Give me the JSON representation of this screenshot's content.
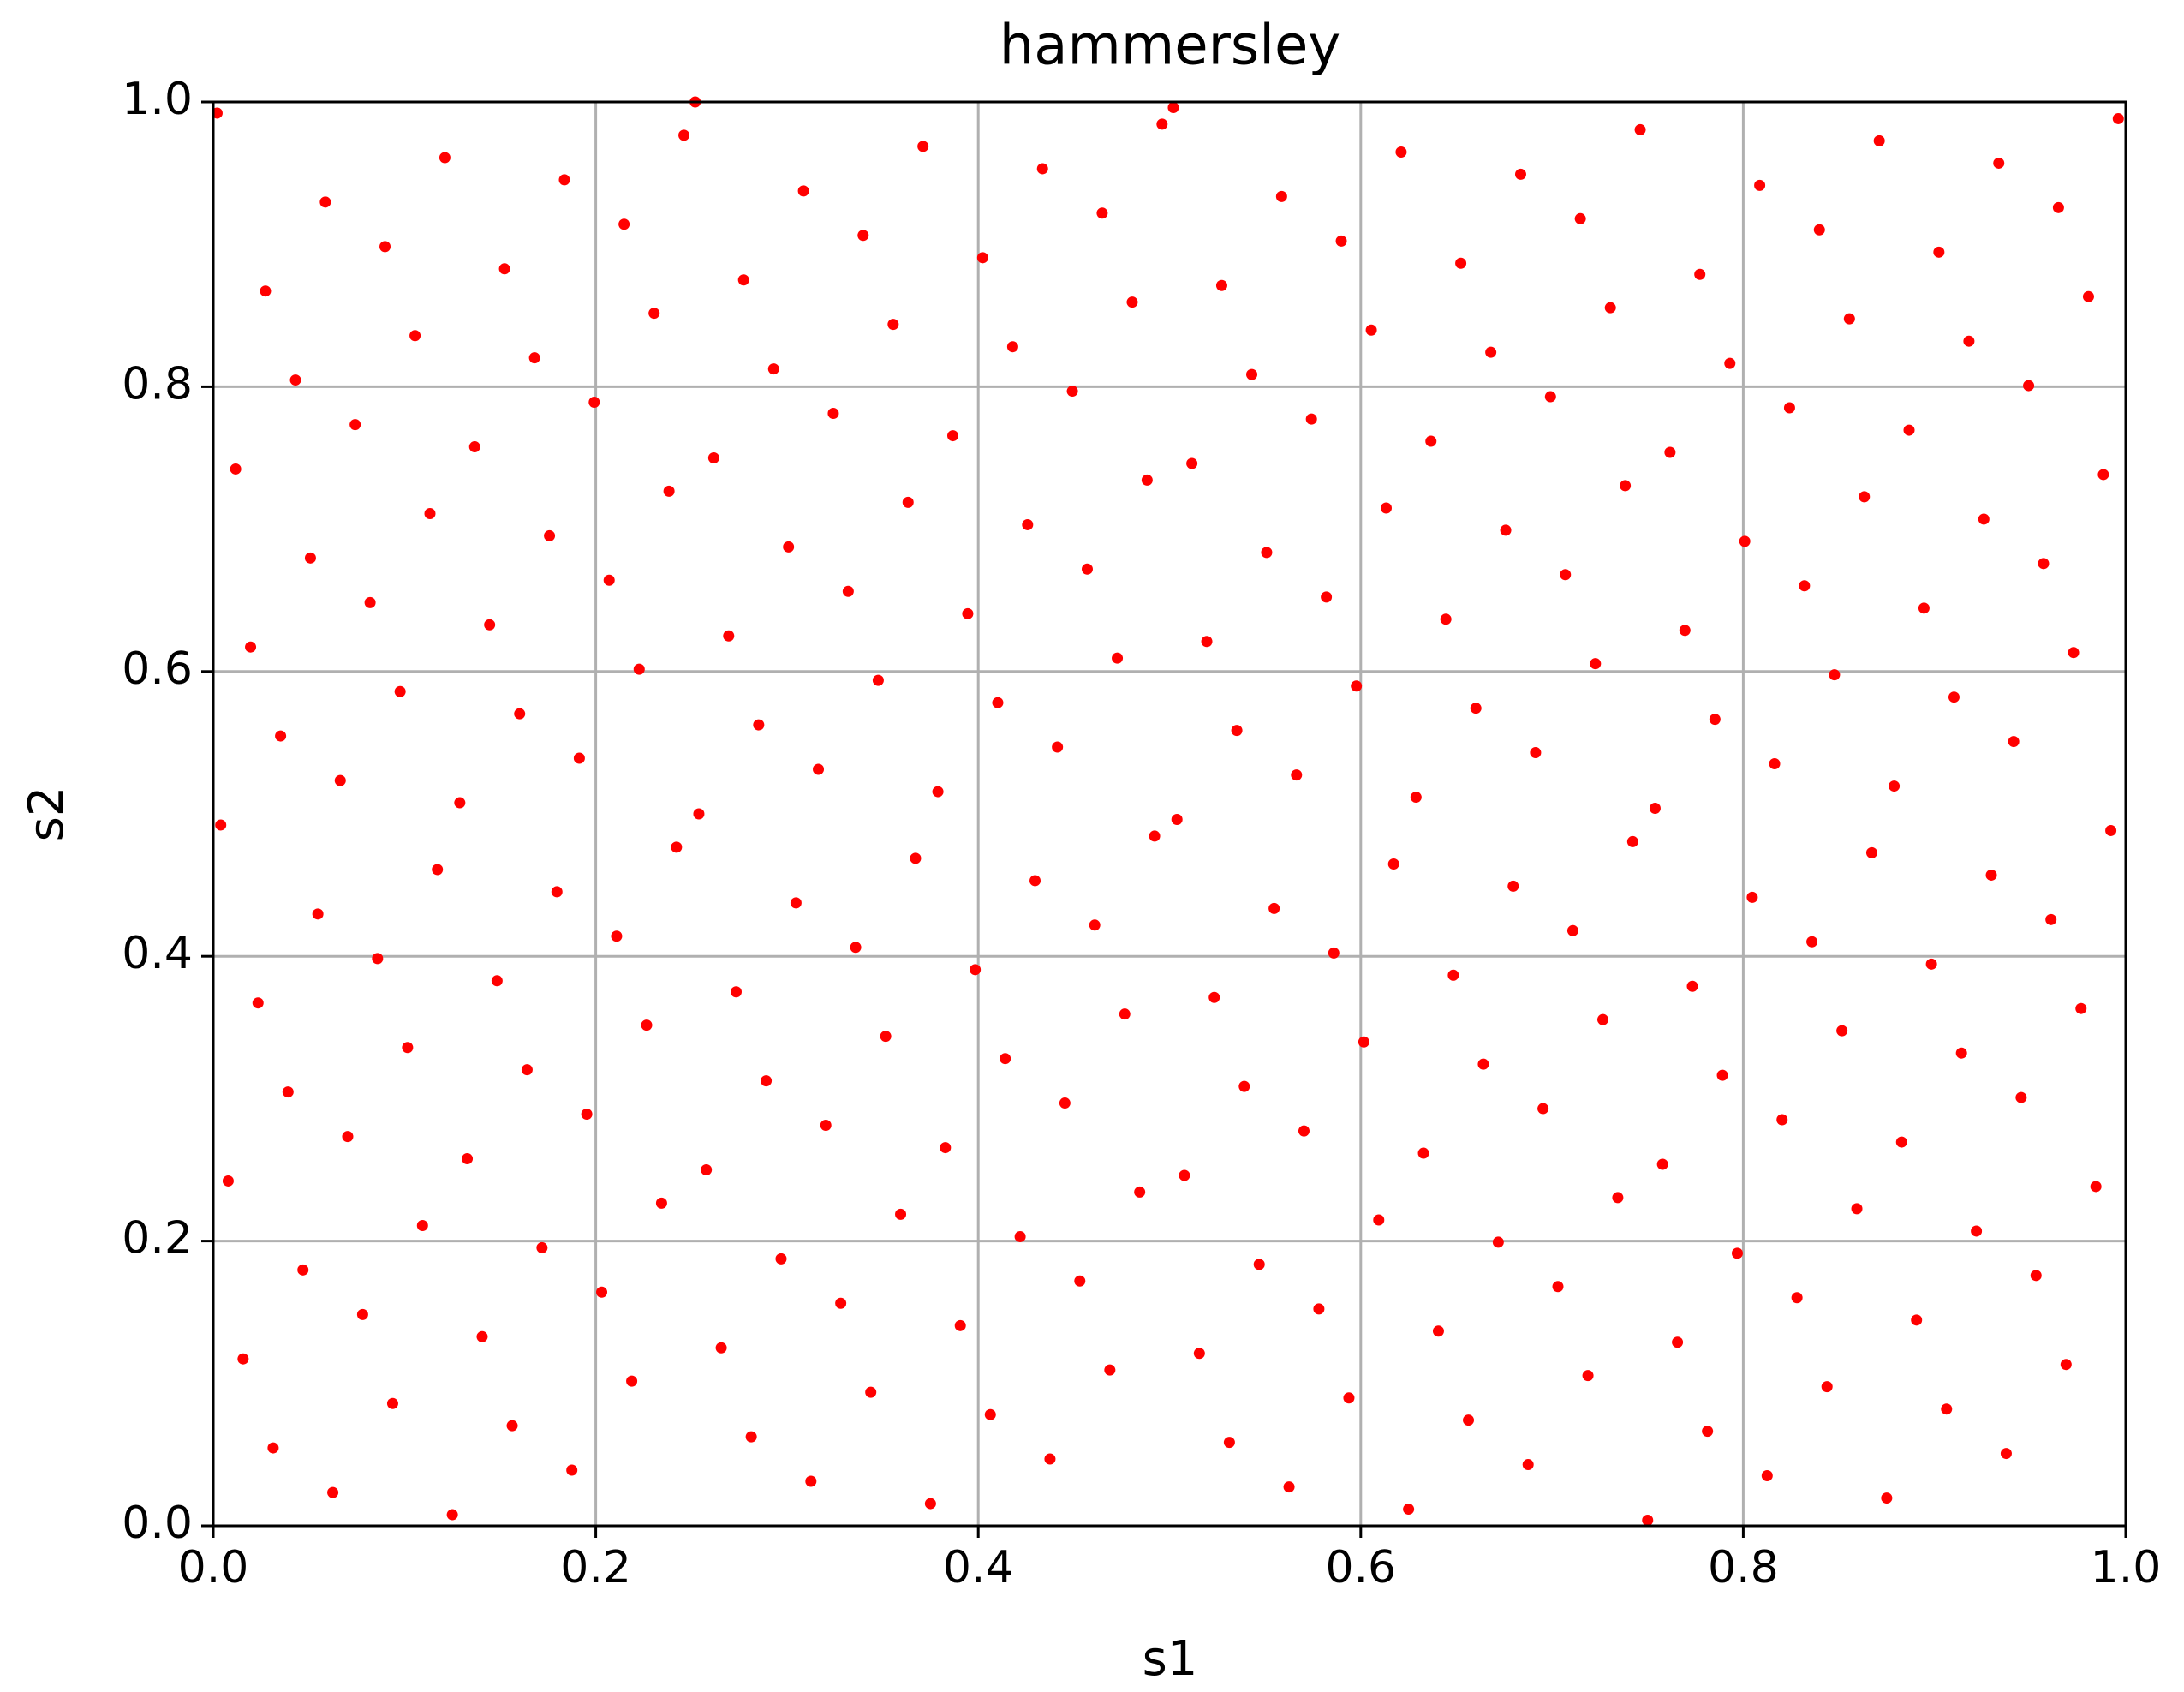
{
  "chart_data": {
    "type": "scatter",
    "title": "hammersley",
    "xlabel": "s1",
    "ylabel": "s2",
    "color": "#ff0000",
    "xlim": [
      0,
      1
    ],
    "ylim": [
      0,
      1
    ],
    "grid": true,
    "xticks": [
      {
        "value": 0,
        "label": "0.0"
      },
      {
        "value": 0.2,
        "label": "0.2"
      },
      {
        "value": 0.4,
        "label": "0.4"
      },
      {
        "value": 0.6,
        "label": "0.6"
      },
      {
        "value": 0.8,
        "label": "0.8"
      },
      {
        "value": 1,
        "label": "1.0"
      }
    ],
    "yticks": [
      {
        "value": 0,
        "label": "0.0"
      },
      {
        "value": 0.2,
        "label": "0.2"
      },
      {
        "value": 0.4,
        "label": "0.4"
      },
      {
        "value": 0.6,
        "label": "0.6"
      },
      {
        "value": 0.8,
        "label": "0.8"
      },
      {
        "value": 1,
        "label": "1.0"
      }
    ],
    "x": [
      0.75,
      0.125,
      0.625,
      0.375,
      0.875,
      0.0625,
      0.5625,
      0.3125,
      0.8125,
      0.1875,
      0.6875,
      0.4375,
      0.9375,
      0.0313,
      0.5313,
      0.2813,
      0.7813,
      0.1563,
      0.6563,
      0.4063,
      0.9063,
      0.0938,
      0.5938,
      0.3438,
      0.8438,
      0.2188,
      0.7188,
      0.4688,
      0.9688,
      0.0156,
      0.5156,
      0.2656,
      0.7656,
      0.1406,
      0.6406,
      0.3906,
      0.8906,
      0.0781,
      0.5781,
      0.3281,
      0.8281,
      0.2031,
      0.7031,
      0.4531,
      0.9531,
      0.0469,
      0.5469,
      0.2969,
      0.7969,
      0.1719,
      0.6719,
      0.4219,
      0.9219,
      0.1094,
      0.6094,
      0.3594,
      0.8594,
      0.2344,
      0.7344,
      0.4844,
      0.9844,
      0.0078,
      0.5078,
      0.2578,
      0.7578,
      0.1328,
      0.6328,
      0.3828,
      0.8828,
      0.0703,
      0.5703,
      0.3203,
      0.8203,
      0.1953,
      0.6953,
      0.4453,
      0.9453,
      0.0391,
      0.5391,
      0.2891,
      0.7891,
      0.1641,
      0.6641,
      0.4141,
      0.9141,
      0.1016,
      0.6016,
      0.3516,
      0.8516,
      0.2266,
      0.7266,
      0.4766,
      0.9766,
      0.0234,
      0.5234,
      0.2734,
      0.7734,
      0.1484,
      0.6484,
      0.3984,
      0.8984,
      0.0859,
      0.5859,
      0.3359,
      0.8359,
      0.2109,
      0.7109,
      0.4609,
      0.9609,
      0.0547,
      0.5547,
      0.3047,
      0.8047,
      0.1797,
      0.6797,
      0.4297,
      0.9297,
      0.1172,
      0.6172,
      0.3672,
      0.8672,
      0.2422,
      0.7422,
      0.4922,
      0.9922,
      0.0039,
      0.5039,
      0.2539,
      0.7539,
      0.1289,
      0.6289,
      0.3789,
      0.8789,
      0.0664,
      0.5664,
      0.3164,
      0.8164,
      0.1914,
      0.6914,
      0.4414,
      0.9414,
      0.0352,
      0.5352,
      0.2852,
      0.7852,
      0.1602,
      0.6602,
      0.4102,
      0.9102,
      0.0977,
      0.5977,
      0.3477,
      0.8477,
      0.2227,
      0.7227,
      0.4727,
      0.9727,
      0.0195,
      0.5195,
      0.2695,
      0.7695,
      0.1445,
      0.6445,
      0.3945,
      0.8945,
      0.082,
      0.582,
      0.332,
      0.832,
      0.207,
      0.707,
      0.457,
      0.957,
      0.0508,
      0.5508,
      0.3008,
      0.8008,
      0.1758,
      0.6758,
      0.4258,
      0.9258,
      0.1133,
      0.6133,
      0.3633,
      0.8633,
      0.2383,
      0.7383,
      0.4883,
      0.9883,
      0.0117,
      0.5117,
      0.2617,
      0.7617,
      0.1367,
      0.6367,
      0.3867,
      0.8867,
      0.0742,
      0.5742,
      0.3242,
      0.8242,
      0.1992,
      0.6992,
      0.4492,
      0.9492,
      0.043,
      0.543,
      0.293,
      0.793,
      0.168,
      0.668,
      0.418,
      0.918,
      0.1055,
      0.6055,
      0.3555,
      0.8555,
      0.2305,
      0.7305,
      0.4805,
      0.9805,
      0.0273,
      0.5273,
      0.2773,
      0.7773,
      0.1523,
      0.6523,
      0.4023,
      0.9023,
      0.0898,
      0.5898,
      0.3398,
      0.8398,
      0.2148,
      0.7148,
      0.4648,
      0.9648,
      0.0586,
      0.5586,
      0.3086,
      0.8086,
      0.1836,
      0.6836,
      0.4336,
      0.9336,
      0.1211,
      0.6211,
      0.3711,
      0.8711,
      0.2461,
      0.7461,
      0.4961,
      0.9961,
      0.002,
      0.502,
      0.252
    ],
    "values": [
      0.0039,
      0.0078,
      0.0117,
      0.0156,
      0.0195,
      0.0234,
      0.0273,
      0.0313,
      0.0352,
      0.0391,
      0.043,
      0.0469,
      0.0508,
      0.0547,
      0.0586,
      0.0625,
      0.0664,
      0.0703,
      0.0742,
      0.0781,
      0.082,
      0.0859,
      0.0898,
      0.0938,
      0.0977,
      0.1016,
      0.1055,
      0.1094,
      0.1133,
      0.1172,
      0.1211,
      0.125,
      0.1289,
      0.1328,
      0.1367,
      0.1406,
      0.1445,
      0.1484,
      0.1523,
      0.1563,
      0.1602,
      0.1641,
      0.168,
      0.1719,
      0.1758,
      0.1797,
      0.1836,
      0.1875,
      0.1914,
      0.1953,
      0.1992,
      0.2031,
      0.207,
      0.2109,
      0.2148,
      0.2188,
      0.2227,
      0.2266,
      0.2305,
      0.2344,
      0.2383,
      0.2422,
      0.2461,
      0.25,
      0.2539,
      0.2578,
      0.2617,
      0.2656,
      0.2695,
      0.2734,
      0.2773,
      0.2813,
      0.2852,
      0.2891,
      0.293,
      0.2969,
      0.3008,
      0.3047,
      0.3086,
      0.3125,
      0.3164,
      0.3203,
      0.3242,
      0.3281,
      0.332,
      0.3359,
      0.3398,
      0.3438,
      0.3477,
      0.3516,
      0.3555,
      0.3594,
      0.3633,
      0.3672,
      0.3711,
      0.375,
      0.3789,
      0.3828,
      0.3867,
      0.3906,
      0.3945,
      0.3984,
      0.4023,
      0.4063,
      0.4102,
      0.4141,
      0.418,
      0.4219,
      0.4258,
      0.4297,
      0.4336,
      0.4375,
      0.4414,
      0.4453,
      0.4492,
      0.4531,
      0.457,
      0.4609,
      0.4648,
      0.4688,
      0.4727,
      0.4766,
      0.4805,
      0.4844,
      0.4883,
      0.4922,
      0.4961,
      0.5,
      0.5039,
      0.5078,
      0.5117,
      0.5156,
      0.5195,
      0.5234,
      0.5273,
      0.5313,
      0.5352,
      0.5391,
      0.543,
      0.5469,
      0.5508,
      0.5547,
      0.5586,
      0.5625,
      0.5664,
      0.5703,
      0.5742,
      0.5781,
      0.582,
      0.5859,
      0.5898,
      0.5938,
      0.5977,
      0.6016,
      0.6055,
      0.6094,
      0.6133,
      0.6172,
      0.6211,
      0.625,
      0.6289,
      0.6328,
      0.6367,
      0.6406,
      0.6445,
      0.6484,
      0.6523,
      0.6563,
      0.6602,
      0.6641,
      0.668,
      0.6719,
      0.6758,
      0.6797,
      0.6836,
      0.6875,
      0.6914,
      0.6953,
      0.6992,
      0.7031,
      0.707,
      0.7109,
      0.7148,
      0.7188,
      0.7227,
      0.7266,
      0.7305,
      0.7344,
      0.7383,
      0.7422,
      0.7461,
      0.75,
      0.7539,
      0.7578,
      0.7617,
      0.7656,
      0.7695,
      0.7734,
      0.7773,
      0.7813,
      0.7852,
      0.7891,
      0.793,
      0.7969,
      0.8008,
      0.8047,
      0.8086,
      0.8125,
      0.8164,
      0.8203,
      0.8242,
      0.8281,
      0.832,
      0.8359,
      0.8398,
      0.8438,
      0.8477,
      0.8516,
      0.8555,
      0.8594,
      0.8633,
      0.8672,
      0.8711,
      0.875,
      0.8789,
      0.8828,
      0.8867,
      0.8906,
      0.8945,
      0.8984,
      0.9023,
      0.9063,
      0.9102,
      0.9141,
      0.918,
      0.9219,
      0.9258,
      0.9297,
      0.9336,
      0.9375,
      0.9414,
      0.9453,
      0.9492,
      0.9531,
      0.957,
      0.9609,
      0.9648,
      0.9688,
      0.9727,
      0.9766,
      0.9805,
      0.9844,
      0.9883,
      0.9922,
      0.9961,
      1.0
    ]
  }
}
